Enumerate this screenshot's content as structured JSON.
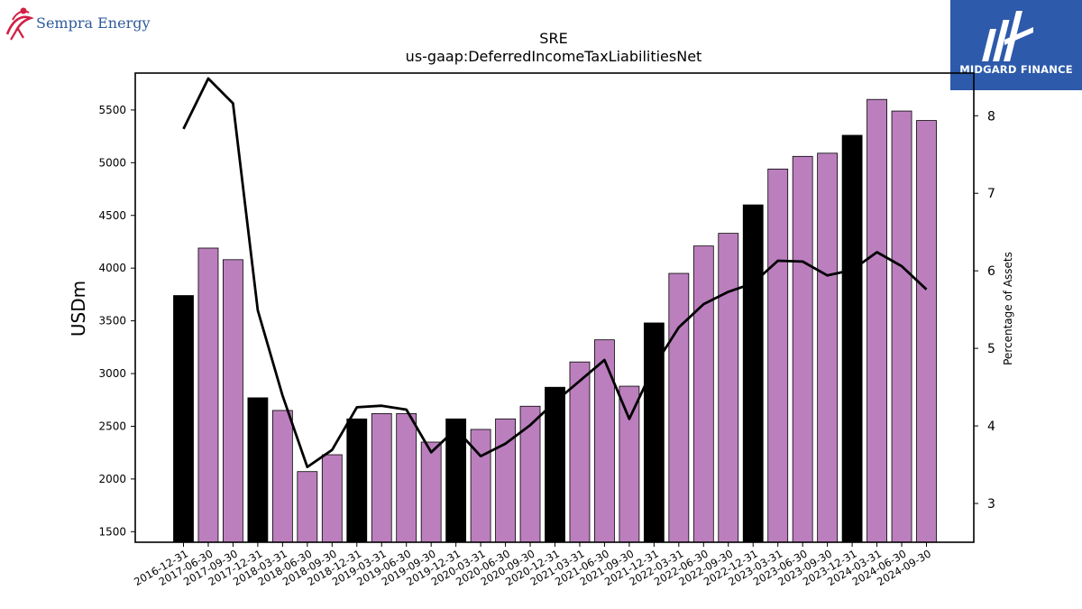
{
  "header": {
    "company_logo_text": "Sempra Energy",
    "partner_logo_text": "MIDGARD FINANCE"
  },
  "colors": {
    "bar_default": "#bc7fbe",
    "bar_year_end": "#000000",
    "line": "#000000",
    "partner_bg": "#2d5aaa",
    "brand_text": "#2f5a9c",
    "brand_mark": "#d21f45"
  },
  "chart_data": {
    "type": "bar",
    "title": "SRE",
    "subtitle": "us-gaap:DeferredIncomeTaxLiabilitiesNet",
    "ylabel": "USDm",
    "y2label": "Percentage of Assets",
    "ylim": [
      1400,
      5850
    ],
    "y2lim": [
      2.5,
      8.55
    ],
    "yticks": [
      1500,
      2000,
      2500,
      3000,
      3500,
      4000,
      4500,
      5000,
      5500
    ],
    "y2ticks": [
      3,
      4,
      5,
      6,
      7,
      8
    ],
    "grid": false,
    "categories": [
      "2016-12-31",
      "2017-06-30",
      "2017-09-30",
      "2017-12-31",
      "2018-03-31",
      "2018-06-30",
      "2018-09-30",
      "2018-12-31",
      "2019-03-31",
      "2019-06-30",
      "2019-09-30",
      "2019-12-31",
      "2020-03-31",
      "2020-06-30",
      "2020-09-30",
      "2020-12-31",
      "2021-03-31",
      "2021-06-30",
      "2021-09-30",
      "2021-12-31",
      "2022-03-31",
      "2022-06-30",
      "2022-09-30",
      "2022-12-31",
      "2023-03-31",
      "2023-06-30",
      "2023-09-30",
      "2023-12-31",
      "2024-03-31",
      "2024-06-30",
      "2024-09-30"
    ],
    "series": [
      {
        "type": "bar",
        "values": [
          3740,
          4190,
          4080,
          2770,
          2650,
          2070,
          2230,
          2570,
          2620,
          2620,
          2350,
          2570,
          2470,
          2570,
          2690,
          2870,
          3110,
          3320,
          2880,
          3480,
          3950,
          4210,
          4330,
          4600,
          4940,
          5060,
          5090,
          5260,
          5600,
          5490,
          5400
        ],
        "year_end": [
          true,
          false,
          false,
          true,
          false,
          false,
          false,
          true,
          false,
          false,
          false,
          true,
          false,
          false,
          false,
          true,
          false,
          false,
          false,
          true,
          false,
          false,
          false,
          true,
          false,
          false,
          false,
          true,
          false,
          false,
          false
        ]
      },
      {
        "type": "line",
        "axis": "right",
        "values": [
          7.83,
          8.48,
          8.16,
          5.49,
          4.39,
          3.47,
          3.69,
          4.24,
          4.26,
          4.21,
          3.66,
          3.96,
          3.61,
          3.77,
          4.01,
          4.31,
          4.58,
          4.85,
          4.09,
          4.77,
          5.27,
          5.57,
          5.73,
          5.84,
          6.13,
          6.12,
          5.94,
          6.01,
          6.24,
          6.06,
          5.76
        ]
      }
    ]
  }
}
